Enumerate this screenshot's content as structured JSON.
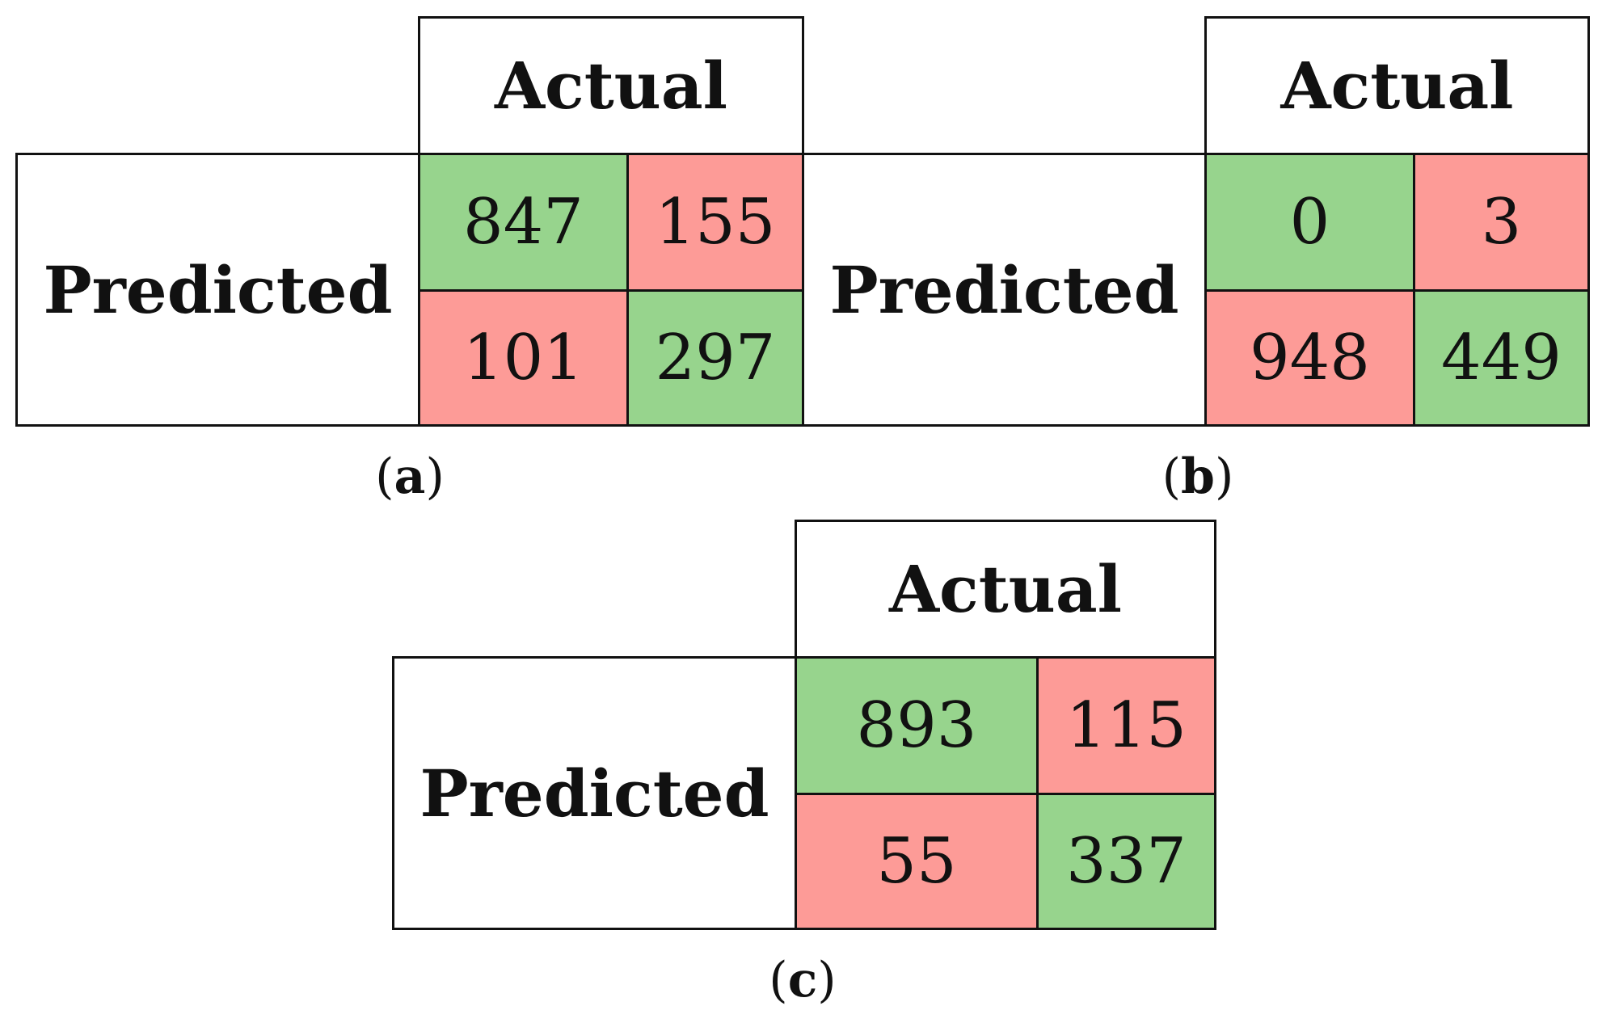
{
  "colors": {
    "correct": "#97d48d",
    "incorrect": "#fd9b97",
    "border": "#111111",
    "background": "#ffffff"
  },
  "matrices": [
    {
      "id": "a",
      "caption_letter": "a",
      "column_header": "Actual",
      "row_header": "Predicted",
      "cells": [
        [
          "847",
          "155"
        ],
        [
          "101",
          "297"
        ]
      ],
      "cell_status": [
        [
          "correct",
          "incorrect"
        ],
        [
          "incorrect",
          "correct"
        ]
      ]
    },
    {
      "id": "b",
      "caption_letter": "b",
      "column_header": "Actual",
      "row_header": "Predicted",
      "cells": [
        [
          "0",
          "3"
        ],
        [
          "948",
          "449"
        ]
      ],
      "cell_status": [
        [
          "correct",
          "incorrect"
        ],
        [
          "incorrect",
          "correct"
        ]
      ]
    },
    {
      "id": "c",
      "caption_letter": "c",
      "column_header": "Actual",
      "row_header": "Predicted",
      "cells": [
        [
          "893",
          "115"
        ],
        [
          "55",
          "337"
        ]
      ],
      "cell_status": [
        [
          "correct",
          "incorrect"
        ],
        [
          "incorrect",
          "correct"
        ]
      ]
    }
  ]
}
